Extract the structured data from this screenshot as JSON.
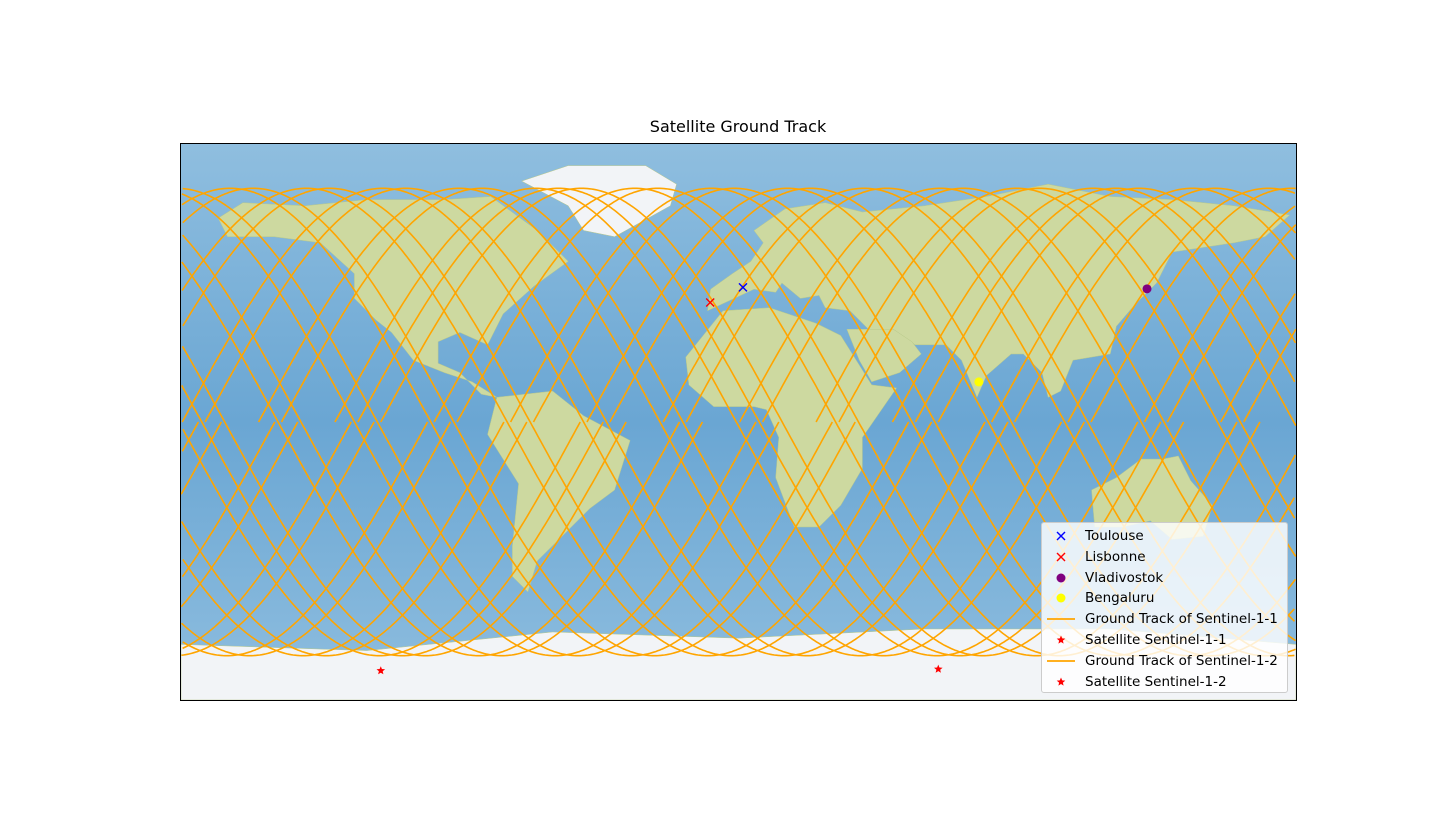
{
  "title": "Satellite Ground Track",
  "chart_data": {
    "type": "map",
    "projection": "plate-carree",
    "xlim": [
      -180,
      180
    ],
    "ylim": [
      -90,
      90
    ],
    "background": "world relief map (land & ocean imagery)",
    "grid": false,
    "legend_placement": "lower-right",
    "ground_track_color": "#ffa500",
    "ground_track_lat_extent": [
      -78,
      78
    ],
    "ground_track_revolutions": 30,
    "cities": [
      {
        "name": "Toulouse",
        "lon": 1.44,
        "lat": 43.6,
        "marker": "x",
        "color": "#0000ff"
      },
      {
        "name": "Lisbonne",
        "lon": -9.14,
        "lat": 38.7,
        "marker": "x",
        "color": "#ff0000"
      },
      {
        "name": "Vladivostok",
        "lon": 131.9,
        "lat": 43.1,
        "marker": "o",
        "color": "#800080"
      },
      {
        "name": "Bengaluru",
        "lon": 77.6,
        "lat": 12.97,
        "marker": "o",
        "color": "#ffff00"
      }
    ],
    "satellites": [
      {
        "name": "Satellite Sentinel-1-1",
        "lon": -115.5,
        "lat": -80.5,
        "marker": "*",
        "color": "#ff0000"
      },
      {
        "name": "Satellite Sentinel-1-2",
        "lon": 64.5,
        "lat": -80.0,
        "marker": "*",
        "color": "#ff0000"
      }
    ],
    "legend": [
      {
        "label": "Toulouse",
        "kind": "x",
        "color": "#0000ff"
      },
      {
        "label": "Lisbonne",
        "kind": "x",
        "color": "#ff0000"
      },
      {
        "label": "Vladivostok",
        "kind": "dot",
        "color": "#800080"
      },
      {
        "label": "Bengaluru",
        "kind": "dot",
        "color": "#ffff00"
      },
      {
        "label": "Ground Track of Sentinel-1-1",
        "kind": "line",
        "color": "#ffa500"
      },
      {
        "label": "Satellite Sentinel-1-1",
        "kind": "star",
        "color": "#ff0000"
      },
      {
        "label": "Ground Track of Sentinel-1-2",
        "kind": "line",
        "color": "#ffa500"
      },
      {
        "label": "Satellite Sentinel-1-2",
        "kind": "star",
        "color": "#ff0000"
      }
    ]
  }
}
